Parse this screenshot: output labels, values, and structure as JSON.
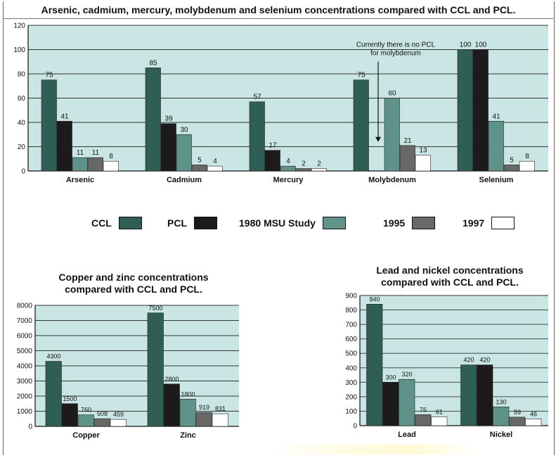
{
  "titles": {
    "main": "Arsenic, cadmium, mercury, molybdenum and selenium concentrations compared with CCL and PCL.",
    "copper_zinc_line1": "Copper and zinc concentrations",
    "copper_zinc_line2": "compared with CCL and PCL.",
    "lead_nickel_line1": "Lead and nickel concentrations",
    "lead_nickel_line2": "compared with CCL and PCL."
  },
  "colors": {
    "plot_bg": "#c9e6e4",
    "CCL": "#2f5f54",
    "PCL": "#1c1a1a",
    "1980 MSU Study": "#5f938a",
    "1995": "#686868",
    "1997": "#ffffff"
  },
  "legend": [
    {
      "name": "CCL",
      "color_key": "CCL"
    },
    {
      "name": "PCL",
      "color_key": "PCL"
    },
    {
      "name": "1980 MSU Study",
      "color_key": "1980 MSU Study"
    },
    {
      "name": "1995",
      "color_key": "1995"
    },
    {
      "name": "1997",
      "color_key": "1997"
    }
  ],
  "chart_data": [
    {
      "id": "main",
      "type": "bar",
      "title": "Arsenic, cadmium, mercury, molybdenum and selenium concentrations compared with CCL and PCL.",
      "categories": [
        "Arsenic",
        "Cadmium",
        "Mercury",
        "Molybdenum",
        "Selenium"
      ],
      "series": [
        {
          "name": "CCL",
          "values": [
            75,
            85,
            57,
            75,
            100
          ]
        },
        {
          "name": "PCL",
          "values": [
            41,
            39,
            17,
            null,
            100
          ]
        },
        {
          "name": "1980 MSU Study",
          "values": [
            11,
            30,
            4,
            60,
            41
          ]
        },
        {
          "name": "1995",
          "values": [
            11,
            5,
            2,
            21,
            5
          ]
        },
        {
          "name": "1997",
          "values": [
            8,
            4,
            2,
            13,
            8
          ]
        }
      ],
      "ylim": [
        0,
        120
      ],
      "yticks": [
        0,
        20,
        40,
        60,
        80,
        100,
        120
      ],
      "grid": true,
      "annotation": {
        "line1": "Currently there is no PCL",
        "line2": "for molybdenum",
        "category": "Molybdenum"
      }
    },
    {
      "id": "copper_zinc",
      "type": "bar",
      "title": "Copper and zinc concentrations compared with CCL and PCL.",
      "categories": [
        "Copper",
        "Zinc"
      ],
      "series": [
        {
          "name": "CCL",
          "values": [
            4300,
            7500
          ]
        },
        {
          "name": "PCL",
          "values": [
            1500,
            2800
          ]
        },
        {
          "name": "1980 MSU Study",
          "values": [
            760,
            1800
          ]
        },
        {
          "name": "1995",
          "values": [
            508,
            919
          ]
        },
        {
          "name": "1997",
          "values": [
            459,
            831
          ]
        }
      ],
      "ylim": [
        0,
        8000
      ],
      "yticks": [
        0,
        1000,
        2000,
        3000,
        4000,
        5000,
        6000,
        7000,
        8000
      ],
      "grid": true
    },
    {
      "id": "lead_nickel",
      "type": "bar",
      "title": "Lead and nickel concentrations compared with CCL and PCL.",
      "categories": [
        "Lead",
        "Nickel"
      ],
      "series": [
        {
          "name": "CCL",
          "values": [
            840,
            420
          ]
        },
        {
          "name": "PCL",
          "values": [
            300,
            420
          ]
        },
        {
          "name": "1980 MSU Study",
          "values": [
            320,
            130
          ]
        },
        {
          "name": "1995",
          "values": [
            76,
            59
          ]
        },
        {
          "name": "1997",
          "values": [
            61,
            46
          ]
        }
      ],
      "ylim": [
        0,
        900
      ],
      "yticks": [
        0,
        100,
        200,
        300,
        400,
        500,
        600,
        700,
        800,
        900
      ],
      "grid": true
    }
  ]
}
